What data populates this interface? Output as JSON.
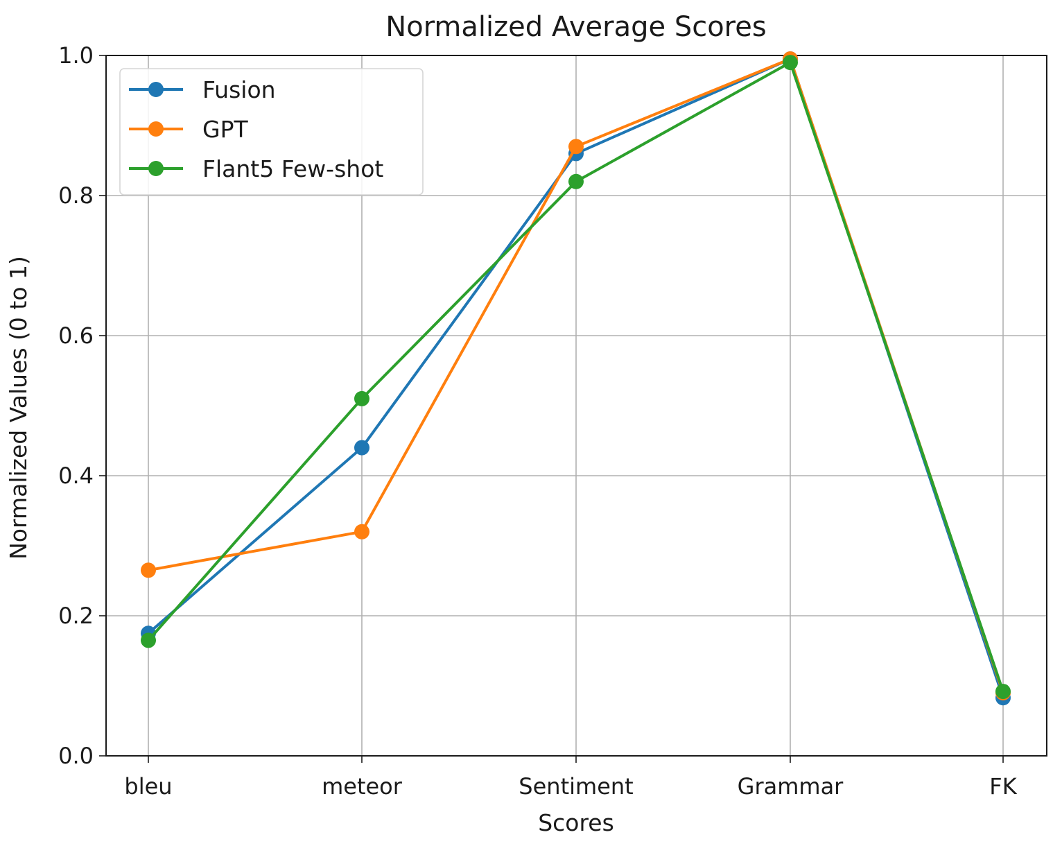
{
  "chart_data": {
    "type": "line",
    "title": "Normalized Average Scores",
    "xlabel": "Scores",
    "ylabel": "Normalized Values (0 to 1)",
    "categories": [
      "bleu",
      "meteor",
      "Sentiment",
      "Grammar",
      "FK"
    ],
    "ylim": [
      0,
      1
    ],
    "yticks": [
      "0.0",
      "0.2",
      "0.4",
      "0.6",
      "0.8",
      "1.0"
    ],
    "grid": true,
    "legend_position": "top-left",
    "series": [
      {
        "name": "Fusion",
        "color": "#1f77b4",
        "values": [
          0.175,
          0.44,
          0.86,
          0.995,
          0.083
        ]
      },
      {
        "name": "GPT",
        "color": "#ff7f0e",
        "values": [
          0.265,
          0.32,
          0.87,
          0.995,
          0.09
        ]
      },
      {
        "name": "Flant5 Few-shot",
        "color": "#2ca02c",
        "values": [
          0.165,
          0.51,
          0.82,
          0.99,
          0.092
        ]
      }
    ]
  }
}
